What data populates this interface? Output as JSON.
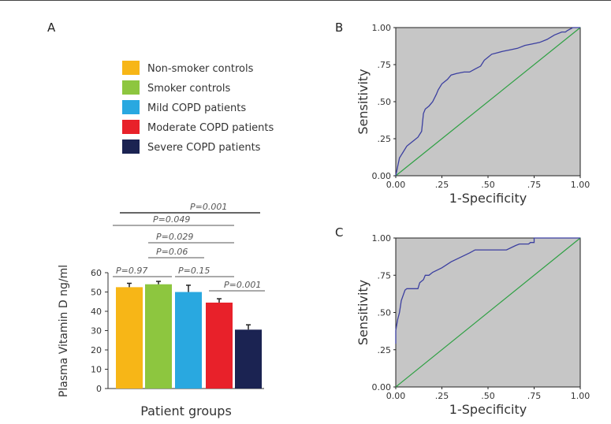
{
  "colors": {
    "nonsmoker": "#f7b617",
    "smoker": "#8dc63f",
    "mild": "#29a8e0",
    "moderate": "#e8212a",
    "severe": "#1b2352",
    "roc_bg": "#c6c6c6",
    "roc_curve": "#3b3fa0",
    "diagonal": "#2ea043"
  },
  "panels": {
    "a": "A",
    "b": "B",
    "c": "C"
  },
  "legend": [
    {
      "label": "Non-smoker controls",
      "color_key": "nonsmoker"
    },
    {
      "label": "Smoker controls",
      "color_key": "smoker"
    },
    {
      "label": "Mild COPD patients",
      "color_key": "mild"
    },
    {
      "label": "Moderate COPD patients",
      "color_key": "moderate"
    },
    {
      "label": "Severe COPD patients",
      "color_key": "severe"
    }
  ],
  "chart_data": [
    {
      "id": "A",
      "type": "bar",
      "categories": [
        "Non-smoker controls",
        "Smoker controls",
        "Mild COPD patients",
        "Moderate COPD patients",
        "Severe COPD patients"
      ],
      "values": [
        52.5,
        54,
        50,
        44.5,
        30.5
      ],
      "errors": [
        2,
        1.5,
        3.5,
        2,
        2.5
      ],
      "ylabel": "Plasma Vitamin D ng/ml",
      "xlabel": "Patient groups",
      "ylim": [
        0,
        60
      ],
      "yticks": [
        "0",
        "10",
        "20",
        "30",
        "40",
        "50",
        "60"
      ],
      "comparisons": [
        {
          "label": "P=0.97",
          "from": 0,
          "to": 1
        },
        {
          "label": "P=0.15",
          "from": 2,
          "to": 3
        },
        {
          "label": "P=0.001",
          "from": 3,
          "to": 4
        },
        {
          "label": "P=0.06",
          "from": 1,
          "to": 2
        },
        {
          "label": "P=0.029",
          "from": 1,
          "to": 3
        },
        {
          "label": "P=0.049",
          "from": 0,
          "to": 3
        },
        {
          "label": "P=0.001",
          "from": 0,
          "to": 4
        }
      ]
    },
    {
      "id": "B",
      "type": "line",
      "title": "",
      "xlabel": "1-Specificity",
      "ylabel": "Sensitivity",
      "xlim": [
        0,
        1
      ],
      "ylim": [
        0,
        1
      ],
      "xticks": [
        "0.00",
        ".25",
        ".50",
        ".75",
        "1.00"
      ],
      "yticks": [
        "0.00",
        ".25",
        ".50",
        ".75",
        "1.00"
      ],
      "series": [
        {
          "name": "ROC",
          "x": [
            0,
            0.01,
            0.02,
            0.04,
            0.06,
            0.08,
            0.1,
            0.12,
            0.14,
            0.15,
            0.16,
            0.18,
            0.2,
            0.22,
            0.23,
            0.25,
            0.28,
            0.3,
            0.33,
            0.37,
            0.4,
            0.43,
            0.46,
            0.48,
            0.5,
            0.52,
            0.55,
            0.58,
            0.62,
            0.66,
            0.7,
            0.74,
            0.78,
            0.82,
            0.86,
            0.9,
            0.92,
            0.93,
            0.96,
            1.0
          ],
          "y": [
            0.0,
            0.06,
            0.12,
            0.16,
            0.2,
            0.22,
            0.24,
            0.26,
            0.3,
            0.42,
            0.45,
            0.47,
            0.5,
            0.55,
            0.58,
            0.62,
            0.65,
            0.68,
            0.69,
            0.7,
            0.7,
            0.72,
            0.74,
            0.78,
            0.8,
            0.82,
            0.83,
            0.84,
            0.85,
            0.86,
            0.88,
            0.89,
            0.9,
            0.92,
            0.95,
            0.97,
            0.97,
            0.98,
            1.0,
            1.0
          ]
        },
        {
          "name": "Reference",
          "x": [
            0,
            1
          ],
          "y": [
            0,
            1
          ]
        }
      ]
    },
    {
      "id": "C",
      "type": "line",
      "title": "",
      "xlabel": "1-Specificity",
      "ylabel": "Sensitivity",
      "xlim": [
        0,
        1
      ],
      "ylim": [
        0,
        1
      ],
      "xticks": [
        "0.00",
        ".25",
        ".50",
        ".75",
        "1.00"
      ],
      "yticks": [
        "0.00",
        ".25",
        ".50",
        ".75",
        "1.00"
      ],
      "series": [
        {
          "name": "ROC",
          "x": [
            0,
            0,
            0.01,
            0.02,
            0.03,
            0.05,
            0.06,
            0.1,
            0.12,
            0.13,
            0.15,
            0.16,
            0.18,
            0.2,
            0.25,
            0.3,
            0.35,
            0.4,
            0.43,
            0.5,
            0.55,
            0.6,
            0.65,
            0.67,
            0.72,
            0.73,
            0.75,
            0.75,
            1.0
          ],
          "y": [
            0.29,
            0.38,
            0.45,
            0.5,
            0.58,
            0.65,
            0.66,
            0.66,
            0.66,
            0.7,
            0.72,
            0.75,
            0.75,
            0.77,
            0.8,
            0.84,
            0.87,
            0.9,
            0.92,
            0.92,
            0.92,
            0.92,
            0.95,
            0.96,
            0.96,
            0.97,
            0.97,
            1.0,
            1.0
          ]
        },
        {
          "name": "Reference",
          "x": [
            0,
            1
          ],
          "y": [
            0,
            1
          ]
        }
      ]
    }
  ]
}
